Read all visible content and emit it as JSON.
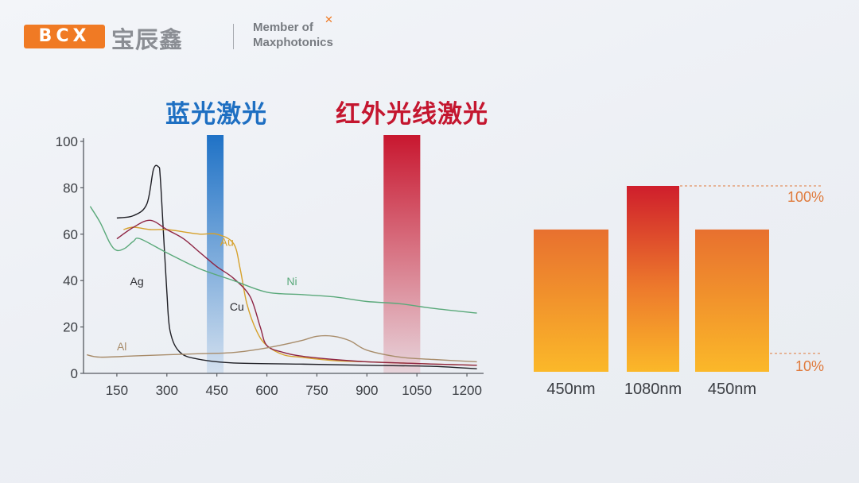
{
  "logo": {
    "abbr": "BCX",
    "chinese": "宝辰鑫",
    "member_line1": "Member of",
    "member_line2": "Maxphotonics"
  },
  "headers": {
    "blue_laser": "蓝光激光",
    "infrared_laser": "红外光线激光"
  },
  "colors": {
    "blue_band": "#1f72c6",
    "red_band": "#c8172f",
    "bar_top": "#e8702f",
    "bar_bottom": "#fbb829",
    "bar_peak_top": "#cf1e2c",
    "brand_orange": "#f07a24"
  },
  "chart_data": [
    {
      "type": "line",
      "title": "",
      "xlabel": "",
      "ylabel": "",
      "xlim": [
        50,
        1250
      ],
      "ylim": [
        0,
        100
      ],
      "x_ticks": [
        150,
        300,
        450,
        600,
        750,
        900,
        1050,
        1200
      ],
      "y_ticks": [
        0,
        20,
        40,
        60,
        80,
        100
      ],
      "grid": false,
      "bands": [
        {
          "from": 420,
          "to": 470
        },
        {
          "from": 950,
          "to": 1060
        }
      ],
      "series": [
        {
          "name": "Ag",
          "color": "#1e1e24",
          "x": [
            150,
            200,
            240,
            260,
            275,
            280,
            290,
            300,
            310,
            340,
            400,
            500,
            700,
            900,
            1100,
            1230
          ],
          "y": [
            67,
            68,
            73,
            88,
            89,
            85,
            60,
            35,
            18,
            9,
            6,
            4.5,
            4,
            3.5,
            3,
            2
          ]
        },
        {
          "name": "Au",
          "color": "#d6a12c",
          "x": [
            170,
            200,
            250,
            300,
            350,
            400,
            450,
            500,
            520,
            540,
            570,
            600,
            650,
            700,
            800,
            900,
            1000,
            1100,
            1230
          ],
          "y": [
            62,
            63,
            62,
            62,
            61,
            60,
            60,
            56,
            45,
            30,
            18,
            12,
            8,
            7,
            5.5,
            5,
            4.5,
            4,
            3.5
          ]
        },
        {
          "name": "Cu",
          "color": "#8e2544",
          "x": [
            150,
            200,
            250,
            300,
            350,
            400,
            450,
            500,
            550,
            580,
            600,
            650,
            700,
            800,
            900,
            1000,
            1100,
            1230
          ],
          "y": [
            58,
            63,
            66,
            62,
            58,
            52,
            46,
            41,
            33,
            20,
            12,
            9,
            7.5,
            6,
            5,
            4.5,
            4,
            3.5
          ]
        },
        {
          "name": "Ni",
          "color": "#5aa97a",
          "x": [
            70,
            100,
            130,
            150,
            175,
            200,
            220,
            300,
            400,
            500,
            600,
            700,
            800,
            900,
            1000,
            1100,
            1230
          ],
          "y": [
            72,
            65,
            56,
            53,
            54,
            57,
            58,
            52,
            45,
            40,
            35,
            34,
            33,
            31,
            30,
            28,
            26
          ]
        },
        {
          "name": "Al",
          "color": "#a88c6a",
          "x": [
            60,
            100,
            200,
            300,
            400,
            500,
            600,
            700,
            750,
            800,
            850,
            900,
            1000,
            1100,
            1230
          ],
          "y": [
            8,
            7,
            7.5,
            8,
            8.5,
            9,
            11,
            14,
            16,
            16,
            14,
            10,
            7,
            6,
            5
          ]
        }
      ]
    },
    {
      "type": "bar",
      "title": "",
      "xlabel": "",
      "ylabel": "",
      "categories": [
        "450nm",
        "1080nm",
        "450nm"
      ],
      "values": [
        62,
        81,
        62
      ],
      "reference_lines": [
        {
          "label": "100%",
          "value": 81
        },
        {
          "label": "10%",
          "value": 8
        }
      ]
    }
  ]
}
